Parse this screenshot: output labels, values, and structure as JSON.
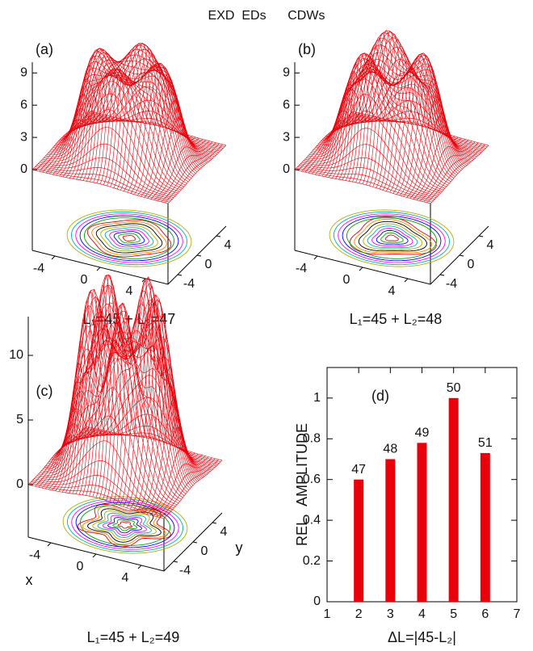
{
  "title": "EXD  EDs      CDWs",
  "chart_data": [
    {
      "type": "surface",
      "label": "(a)",
      "zlim": [
        0,
        10
      ],
      "zticks": [
        0,
        3,
        6,
        9
      ],
      "xticks": [
        -4,
        0,
        4
      ],
      "yticks": [
        -4,
        0,
        4
      ],
      "caption": "L₁=45 + L₂=47",
      "color": "#e8000b"
    },
    {
      "type": "surface",
      "label": "(b)",
      "zlim": [
        0,
        10
      ],
      "zticks": [
        0,
        3,
        6,
        9
      ],
      "xticks": [
        -4,
        0,
        4
      ],
      "yticks": [
        -4,
        0,
        4
      ],
      "caption": "L₁=45 + L₂=48",
      "color": "#e8000b"
    },
    {
      "type": "surface",
      "label": "(c)",
      "zlim": [
        0,
        13
      ],
      "zticks": [
        0,
        5,
        10
      ],
      "xticks": [
        -4,
        0,
        4
      ],
      "yticks": [
        -4,
        0,
        4
      ],
      "xlabel": "x",
      "ylabel": "y",
      "caption": "L₁=45 + L₂=49",
      "color": "#e8000b"
    },
    {
      "type": "bar",
      "label": "(d)",
      "x": [
        2,
        3,
        4,
        5,
        6
      ],
      "values": [
        0.6,
        0.7,
        0.78,
        1.0,
        0.73
      ],
      "bar_labels": [
        "47",
        "48",
        "49",
        "50",
        "51"
      ],
      "xlim": [
        1,
        7
      ],
      "xticks": [
        1,
        2,
        3,
        4,
        5,
        6,
        7
      ],
      "ylim": [
        0,
        1.15
      ],
      "yticks": [
        0,
        0.2,
        0.4,
        0.6,
        0.8,
        1
      ],
      "xlabel": "ΔL=|45-L₂|",
      "ylabel": "REL.  AMPLITUDE",
      "color": "#e8000b"
    }
  ]
}
